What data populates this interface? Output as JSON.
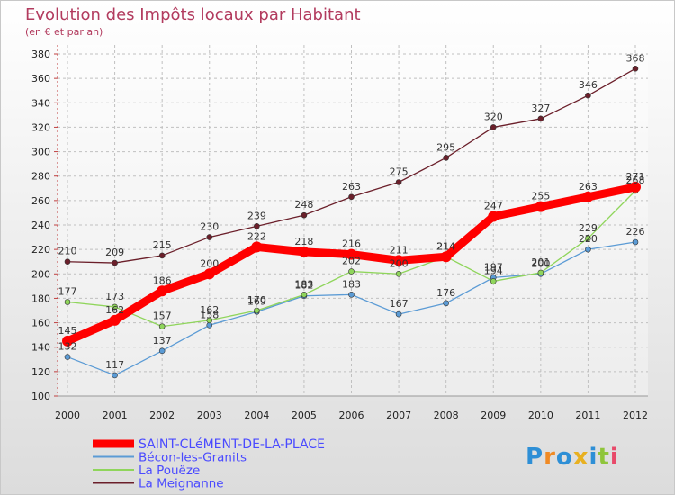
{
  "chart_data": {
    "type": "line",
    "title": "Evolution des Impôts locaux par Habitant",
    "subtitle": "(en € et par an)",
    "categories": [
      "2000",
      "2001",
      "2002",
      "2003",
      "2004",
      "2005",
      "2006",
      "2007",
      "2008",
      "2009",
      "2010",
      "2011",
      "2012"
    ],
    "ylim": [
      100,
      380
    ],
    "yticks": [
      100,
      120,
      140,
      160,
      180,
      200,
      220,
      240,
      260,
      280,
      300,
      320,
      340,
      360,
      380
    ],
    "grid": true,
    "legend_position": "bottom-left",
    "series": [
      {
        "name": "SAINT-CLéMENT-DE-LA-PLACE",
        "color": "#ff0000",
        "values": [
          145,
          162,
          186,
          200,
          222,
          218,
          216,
          211,
          214,
          247,
          255,
          263,
          271
        ]
      },
      {
        "name": "Bécon-les-Granits",
        "color": "#5b9bd5",
        "values": [
          132,
          117,
          137,
          158,
          169,
          182,
          183,
          167,
          176,
          197,
          200,
          220,
          226
        ]
      },
      {
        "name": "La Pouëze",
        "color": "#8fd55b",
        "values": [
          177,
          173,
          157,
          162,
          170,
          183,
          202,
          200,
          214,
          194,
          201,
          229,
          268
        ]
      },
      {
        "name": "La Meignanne",
        "color": "#6b1f2a",
        "values": [
          210,
          209,
          215,
          230,
          239,
          248,
          263,
          275,
          295,
          320,
          327,
          346,
          368
        ]
      }
    ]
  },
  "watermark": {
    "text": "Proxiti"
  }
}
